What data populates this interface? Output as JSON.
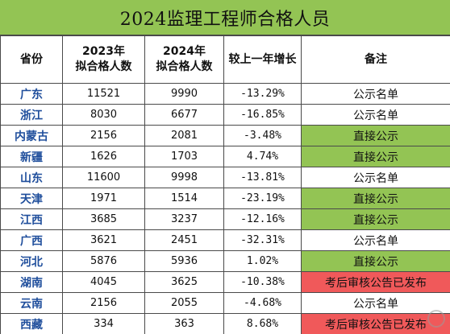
{
  "title": "2024监理工程师合格人员",
  "headers": {
    "province": "省份",
    "y2023_line1": "2023年",
    "y2023_line2": "拟合格人数",
    "y2024_line1": "2024年",
    "y2024_line2": "拟合格人数",
    "growth": "较上一年增长",
    "note": "备注"
  },
  "note_colors": {
    "green": "#93c454",
    "red": "#f0595a",
    "plain": "#ffffff"
  },
  "rows": [
    {
      "province": "广东",
      "y2023": "11521",
      "y2024": "9990",
      "growth": "-13.29%",
      "note": "公示名单",
      "note_style": "plain"
    },
    {
      "province": "浙江",
      "y2023": "8030",
      "y2024": "6677",
      "growth": "-16.85%",
      "note": "公示名单",
      "note_style": "plain"
    },
    {
      "province": "内蒙古",
      "y2023": "2156",
      "y2024": "2081",
      "growth": "-3.48%",
      "note": "直接公示",
      "note_style": "green"
    },
    {
      "province": "新疆",
      "y2023": "1626",
      "y2024": "1703",
      "growth": "4.74%",
      "note": "直接公示",
      "note_style": "green"
    },
    {
      "province": "山东",
      "y2023": "11600",
      "y2024": "9998",
      "growth": "-13.81%",
      "note": "公示名单",
      "note_style": "plain"
    },
    {
      "province": "天津",
      "y2023": "1971",
      "y2024": "1514",
      "growth": "-23.19%",
      "note": "直接公示",
      "note_style": "green"
    },
    {
      "province": "江西",
      "y2023": "3685",
      "y2024": "3237",
      "growth": "-12.16%",
      "note": "直接公示",
      "note_style": "green"
    },
    {
      "province": "广西",
      "y2023": "3621",
      "y2024": "2451",
      "growth": "-32.31%",
      "note": "公示名单",
      "note_style": "plain"
    },
    {
      "province": "河北",
      "y2023": "5876",
      "y2024": "5936",
      "growth": "1.02%",
      "note": "直接公示",
      "note_style": "green"
    },
    {
      "province": "湖南",
      "y2023": "4045",
      "y2024": "3625",
      "growth": "-10.38%",
      "note": "考后审核公告已发布",
      "note_style": "red"
    },
    {
      "province": "云南",
      "y2023": "2156",
      "y2024": "2055",
      "growth": "-4.68%",
      "note": "公示名单",
      "note_style": "plain"
    },
    {
      "province": "西藏",
      "y2023": "334",
      "y2024": "363",
      "growth": "8.68%",
      "note": "考后审核公告已发布",
      "note_style": "red"
    }
  ]
}
